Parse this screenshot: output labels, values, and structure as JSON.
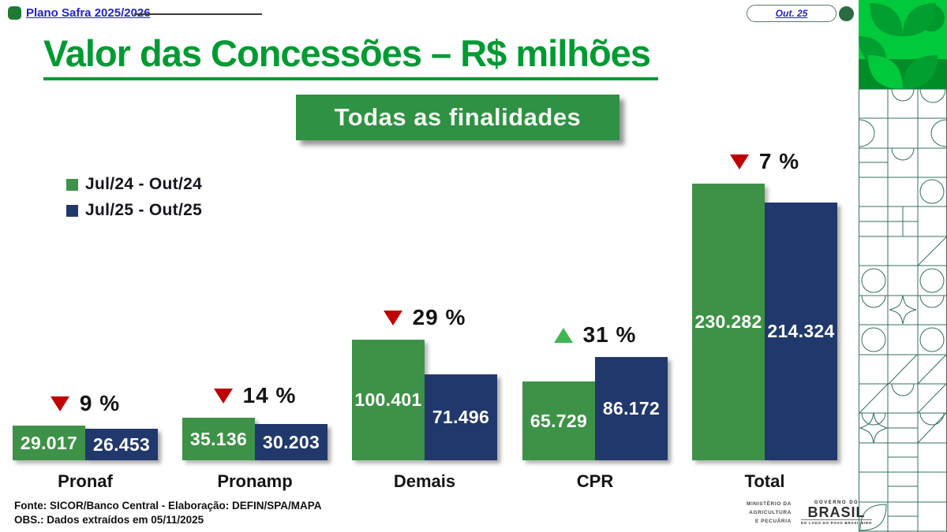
{
  "header": {
    "brand_link": "Plano Safra 2025/2026",
    "date_link": "Out. 25"
  },
  "title": "Valor das Concessões – R$ milhões",
  "subtitle_badge": "Todas as finalidades",
  "legend": [
    {
      "label": "Jul/24 - Out/24",
      "color": "#3e9247"
    },
    {
      "label": "Jul/25 - Out/25",
      "color": "#20386b"
    }
  ],
  "chart_data": {
    "type": "bar",
    "title": "Valor das Concessões – R$ milhões",
    "subtitle": "Todas as finalidades",
    "unit": "R$ milhões",
    "categories": [
      "Pronaf",
      "Pronamp",
      "Demais",
      "CPR",
      "Total"
    ],
    "series": [
      {
        "name": "Jul/24 - Out/24",
        "color": "#3e9247",
        "values": [
          29017,
          35136,
          100401,
          65729,
          230282
        ],
        "labels": [
          "29.017",
          "35.136",
          "100.401",
          "65.729",
          "230.282"
        ]
      },
      {
        "name": "Jul/25 - Out/25",
        "color": "#20386b",
        "values": [
          26453,
          30203,
          71496,
          86172,
          214324
        ],
        "labels": [
          "26.453",
          "30.203",
          "71.496",
          "86.172",
          "214.324"
        ]
      }
    ],
    "annotations": [
      {
        "category": "Pronaf",
        "direction": "down",
        "text": "9 %"
      },
      {
        "category": "Pronamp",
        "direction": "down",
        "text": "14 %"
      },
      {
        "category": "Demais",
        "direction": "down",
        "text": "29 %"
      },
      {
        "category": "CPR",
        "direction": "up",
        "text": "31 %"
      },
      {
        "category": "Total",
        "direction": "down",
        "text": "7 %"
      }
    ],
    "ylim": [
      0,
      240000
    ],
    "grid": false,
    "legend_position": "top-left"
  },
  "footer": {
    "line1": "Fonte: SICOR/Banco Central - Elaboração: DEFIN/SPA/MAPA",
    "line2": "OBS.: Dados extraídos em 05/11/2025"
  },
  "logos": {
    "ministry_line1": "MINISTÉRIO DA",
    "ministry_line2": "AGRICULTURA",
    "ministry_line3": "E PECUÁRIA",
    "gov_top": "GOVERNO DO",
    "gov_name": "BRASIL",
    "gov_sub": "DO LADO DO POVO BRASILEIRO"
  },
  "colors": {
    "accent_green": "#009a33",
    "badge_green": "#2e9144",
    "bar_green": "#3e9247",
    "bar_navy": "#20386b",
    "down_red": "#c00000",
    "up_green": "#41b64e",
    "link_blue": "#2323cc",
    "sidebar_bright_green": "#00c93b",
    "sidebar_dark_green": "#008d28",
    "sidebar_line_green": "#33705c"
  }
}
